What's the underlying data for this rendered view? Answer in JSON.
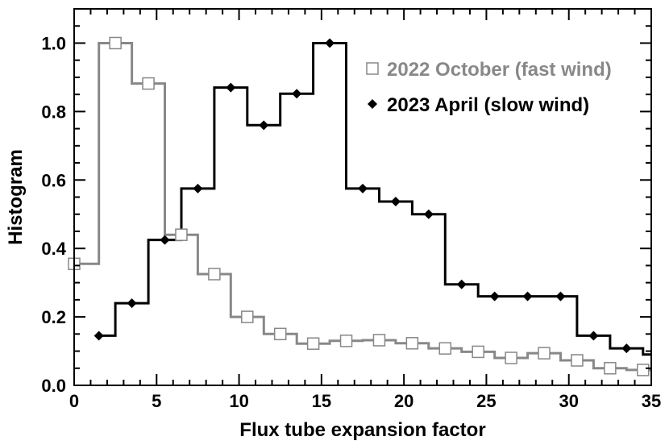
{
  "chart_data": {
    "type": "line",
    "title": "",
    "xlabel": "Flux tube expansion factor",
    "ylabel": "Histogram",
    "xlim": [
      0,
      35
    ],
    "ylim": [
      0,
      1.1
    ],
    "grid": false,
    "legend_position": "top-right",
    "x_ticks": [
      0,
      5,
      10,
      15,
      20,
      25,
      30,
      35
    ],
    "x_tick_labels": [
      "0",
      "5",
      "10",
      "15",
      "20",
      "25",
      "30",
      "35"
    ],
    "y_ticks": [
      0.0,
      0.2,
      0.4,
      0.6,
      0.8,
      1.0
    ],
    "y_tick_labels": [
      "0.0",
      "0.2",
      "0.4",
      "0.6",
      "0.8",
      "1.0"
    ],
    "x": [
      0.5,
      2.5,
      4.5,
      6.5,
      8.5,
      10.5,
      12.5,
      14.5,
      16.5,
      18.5,
      20.5,
      22.5,
      24.5,
      26.5,
      28.5,
      30.5,
      32.5,
      34.5
    ],
    "series": [
      {
        "name": "2022 October (fast wind)",
        "color": "#888888",
        "marker": "open-square",
        "marker_x": [
          0,
          2.5,
          4.5,
          6.5,
          8.5,
          10.5,
          12.5,
          14.5,
          16.5,
          18.5,
          20.5,
          22.5,
          24.5,
          26.5,
          28.5,
          30.5,
          32.5,
          34.5
        ],
        "marker_y": [
          0.355,
          1.0,
          0.882,
          0.44,
          0.325,
          0.2,
          0.15,
          0.122,
          0.13,
          0.132,
          0.123,
          0.108,
          0.098,
          0.08,
          0.094,
          0.073,
          0.05,
          0.045
        ],
        "step_edges": [
          0,
          1.5,
          1.5,
          3.5,
          3.5,
          5.5,
          5.5,
          7.5,
          7.5,
          9.5,
          9.5,
          11.5,
          11.5,
          13.5,
          13.5,
          15.5,
          15.5,
          17.5,
          17.5,
          19.5,
          19.5,
          21.5,
          21.5,
          23.5,
          23.5,
          25.5,
          25.5,
          27.5,
          27.5,
          29.5,
          29.5,
          31.5,
          31.5,
          33.5,
          33.5,
          35
        ],
        "step_values": [
          0.355,
          0.355,
          1.0,
          1.0,
          0.882,
          0.882,
          0.44,
          0.44,
          0.325,
          0.325,
          0.2,
          0.2,
          0.15,
          0.15,
          0.122,
          0.122,
          0.13,
          0.13,
          0.132,
          0.132,
          0.123,
          0.123,
          0.108,
          0.108,
          0.098,
          0.098,
          0.08,
          0.08,
          0.094,
          0.094,
          0.073,
          0.073,
          0.05,
          0.05,
          0.045,
          0.045
        ]
      },
      {
        "name": "2023 April (slow wind)",
        "color": "#000000",
        "marker": "filled-diamond",
        "marker_x": [
          1.5,
          3.5,
          5.5,
          7.5,
          9.5,
          11.5,
          13.5,
          15.5,
          17.5,
          19.5,
          21.5,
          23.5,
          25.5,
          27.5,
          29.5,
          31.5,
          33.5
        ],
        "marker_y": [
          0.145,
          0.24,
          0.425,
          0.575,
          0.87,
          0.76,
          0.852,
          1.0,
          0.575,
          0.537,
          0.5,
          0.295,
          0.26,
          0.26,
          0.26,
          0.145,
          0.108
        ],
        "step_edges": [
          1.5,
          2.5,
          2.5,
          4.5,
          4.5,
          6.5,
          6.5,
          8.5,
          8.5,
          10.5,
          10.5,
          12.5,
          12.5,
          14.5,
          14.5,
          16.5,
          16.5,
          18.5,
          18.5,
          20.5,
          20.5,
          22.5,
          22.5,
          24.5,
          24.5,
          26.5,
          26.5,
          28.5,
          28.5,
          30.5,
          30.5,
          32.5,
          32.5,
          34.5,
          34.5,
          35
        ],
        "step_values": [
          0.145,
          0.145,
          0.24,
          0.24,
          0.425,
          0.425,
          0.575,
          0.575,
          0.87,
          0.87,
          0.76,
          0.76,
          0.852,
          0.852,
          1.0,
          1.0,
          0.575,
          0.575,
          0.537,
          0.537,
          0.5,
          0.5,
          0.295,
          0.295,
          0.26,
          0.26,
          0.26,
          0.26,
          0.26,
          0.26,
          0.145,
          0.145,
          0.108,
          0.108,
          0.09,
          0.09
        ]
      }
    ]
  }
}
